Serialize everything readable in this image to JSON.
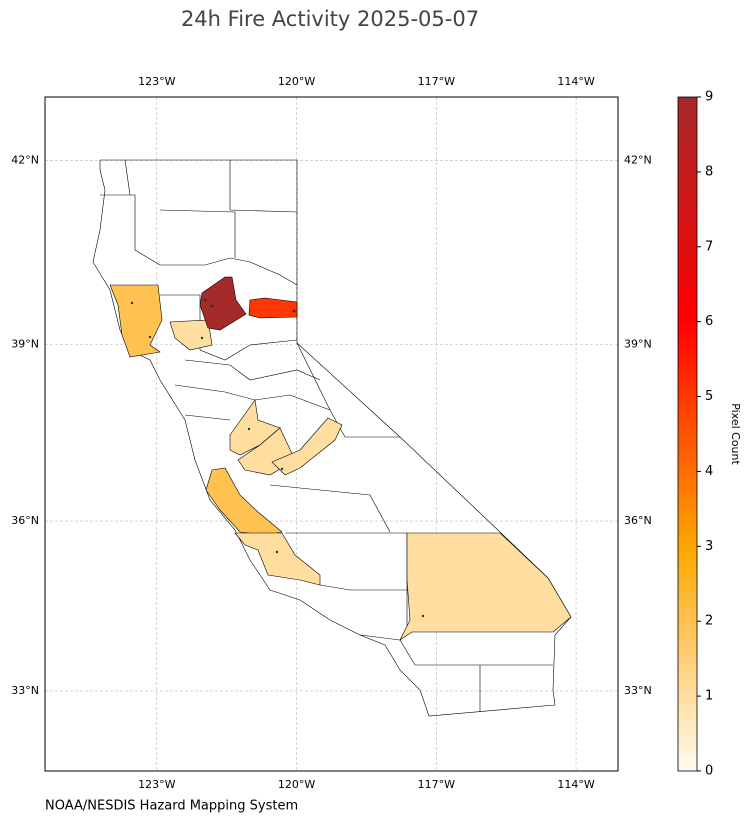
{
  "title": "24h Fire Activity 2025-05-07",
  "source": "NOAA/NESDIS Hazard Mapping System",
  "map": {
    "xlim": [
      -125.4,
      -113.1
    ],
    "ylim": [
      31.55,
      43.0
    ],
    "xticks": [
      {
        "value": -123,
        "label": "123°W"
      },
      {
        "value": -120,
        "label": "120°W"
      },
      {
        "value": -117,
        "label": "117°W"
      },
      {
        "value": -114,
        "label": "114°W"
      }
    ],
    "yticks": [
      {
        "value": 42,
        "label": "42°N"
      },
      {
        "value": 39,
        "label": "39°N"
      },
      {
        "value": 36,
        "label": "36°N"
      },
      {
        "value": 33,
        "label": "33°N"
      }
    ],
    "grid": true,
    "region_values": [
      2,
      1,
      9,
      5,
      1,
      1,
      1,
      2,
      1,
      1
    ]
  },
  "colorbar": {
    "label": "Pixel Count",
    "lim": [
      0,
      9
    ],
    "ticks": [
      0,
      1,
      2,
      3,
      4,
      5,
      6,
      7,
      8,
      9
    ],
    "colors": [
      "#fffaf0",
      "#ffa500",
      "#ff0000",
      "#a52a2a"
    ]
  }
}
